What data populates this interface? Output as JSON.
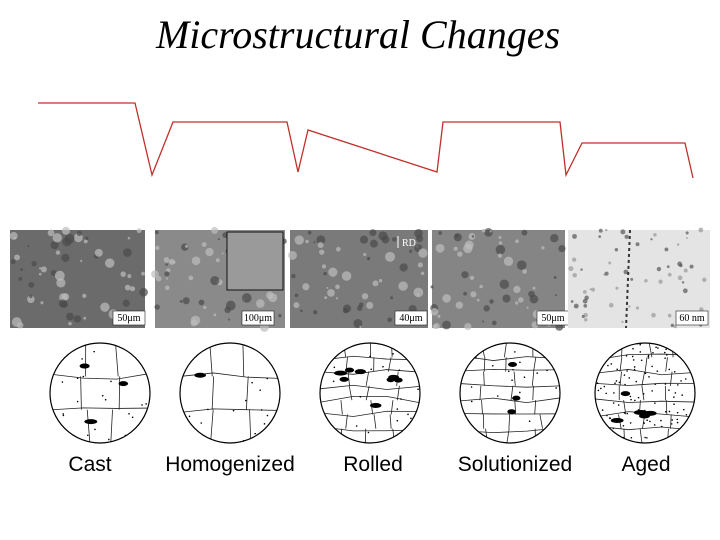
{
  "title": "Microstructural Changes",
  "stages": [
    {
      "label": "Cast",
      "scale": "50μm"
    },
    {
      "label": "Homogenized",
      "scale": "100μm"
    },
    {
      "label": "Rolled",
      "scale": "40μm",
      "direction": "RD"
    },
    {
      "label": "Solutionized",
      "scale": "50μm"
    },
    {
      "label": "Aged",
      "scale": "60 nm"
    }
  ]
}
